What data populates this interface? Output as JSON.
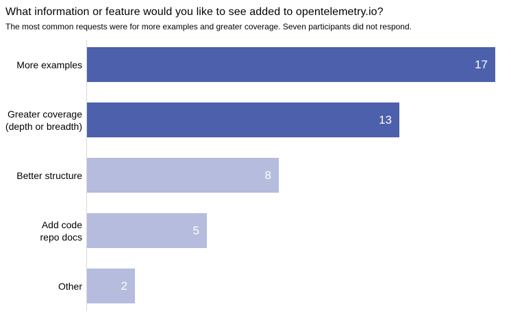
{
  "chart_data": {
    "type": "bar",
    "orientation": "horizontal",
    "title": "What information or feature would you like to see added to opentelemetry.io?",
    "subtitle": "The most common requests were for more examples and greater coverage. Seven participants did not respond.",
    "categories": [
      "More examples",
      "Greater coverage\n(depth or breadth)",
      "Better structure",
      "Add code\nrepo docs",
      "Other"
    ],
    "values": [
      17,
      13,
      8,
      5,
      2
    ],
    "colors": [
      "#4D60AC",
      "#4D60AC",
      "#B6BCDD",
      "#B6BCDD",
      "#B6BCDD"
    ],
    "value_label_position": "inside-end",
    "value_label_color": "#FFFFFF",
    "axis_line_color": "#D9D9D9",
    "xlim": [
      0,
      17.7
    ],
    "grid": false,
    "legend": "none",
    "xlabel": "",
    "ylabel": ""
  }
}
